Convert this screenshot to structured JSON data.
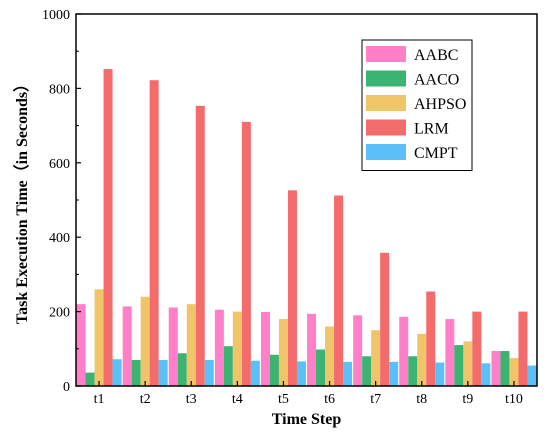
{
  "chart_data": {
    "type": "bar",
    "title": "",
    "xlabel": "Time Step",
    "ylabel": "Task Execution Time（in Seconds）",
    "ylim": [
      0,
      1000
    ],
    "yticks": [
      0,
      200,
      400,
      600,
      800,
      1000
    ],
    "categories": [
      "t1",
      "t2",
      "t3",
      "t4",
      "t5",
      "t6",
      "t7",
      "t8",
      "t9",
      "t10"
    ],
    "legend_position": "top-right",
    "series": [
      {
        "name": "AABC",
        "color": "#ff7fc8",
        "values": [
          220,
          214,
          211,
          205,
          199,
          194,
          190,
          186,
          180,
          94
        ]
      },
      {
        "name": "AACO",
        "color": "#3cb371",
        "values": [
          36,
          70,
          88,
          107,
          84,
          98,
          80,
          80,
          110,
          94
        ]
      },
      {
        "name": "AHPSO",
        "color": "#f0c56a",
        "values": [
          260,
          240,
          220,
          200,
          180,
          160,
          150,
          140,
          120,
          75
        ]
      },
      {
        "name": "LRM",
        "color": "#f36b6b",
        "values": [
          852,
          822,
          753,
          710,
          526,
          512,
          358,
          254,
          200,
          200
        ]
      },
      {
        "name": "CMPT",
        "color": "#5bc0f8",
        "values": [
          72,
          70,
          70,
          68,
          66,
          65,
          65,
          63,
          61,
          55
        ]
      }
    ]
  }
}
